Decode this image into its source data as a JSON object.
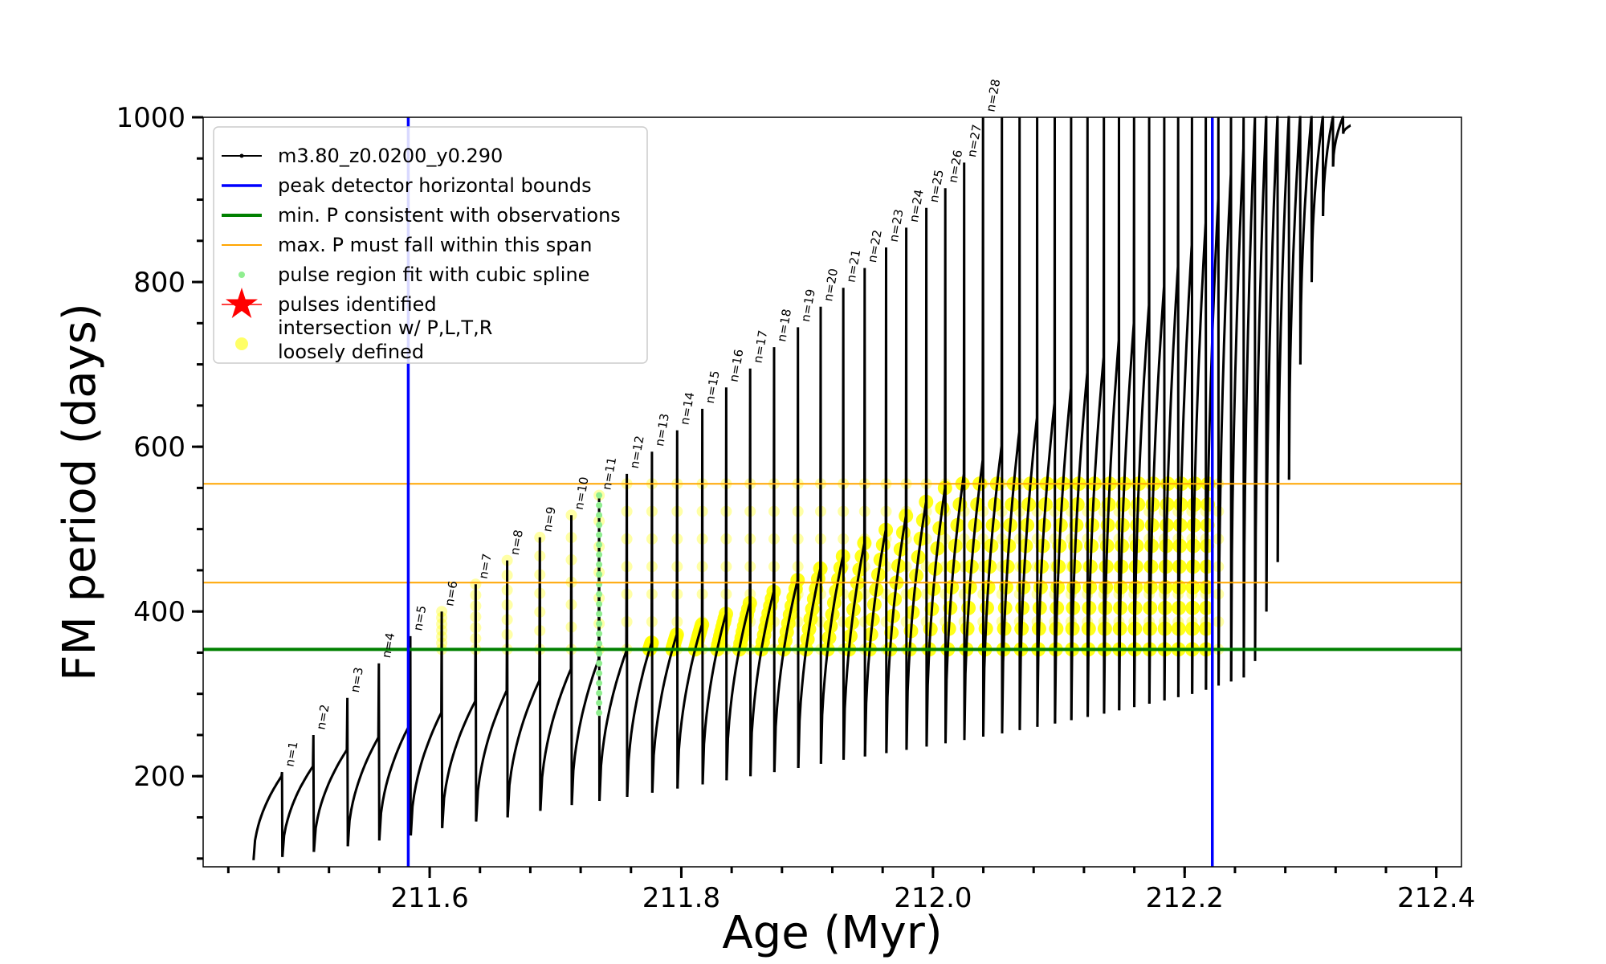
{
  "chart_data": {
    "type": "line",
    "xlabel": "Age (Myr)",
    "ylabel": "FM period (days)",
    "xlim": [
      211.42,
      212.42
    ],
    "ylim": [
      90,
      1000
    ],
    "x_ticks": [
      "211.6",
      "211.8",
      "212.0",
      "212.2",
      "212.4"
    ],
    "y_ticks": [
      "200",
      "400",
      "600",
      "800",
      "1000"
    ],
    "grid": false,
    "legend_position": "top-left",
    "colors": {
      "track": "#000000",
      "bounds": "#0000ff",
      "min_p": "#008000",
      "max_p": "#ffa500",
      "spline": "#90ee90",
      "identified": "#ff0000",
      "intersection": "#ffff00"
    },
    "peak_detector_bounds": [
      211.583,
      212.222
    ],
    "min_period_observed": 354,
    "max_period_span": [
      435,
      555
    ],
    "series": [
      {
        "name": "m3.80_z0.0200_y0.290",
        "pulses": [
          {
            "label": "n=1",
            "start": 211.46,
            "min": 98,
            "settle": 200,
            "peak": 205
          },
          {
            "label": "n=2",
            "start": 211.483,
            "min": 102,
            "settle": 212,
            "peak": 250
          },
          {
            "label": "n=3",
            "start": 211.508,
            "min": 108,
            "settle": 232,
            "peak": 295
          },
          {
            "label": "n=4",
            "start": 211.535,
            "min": 115,
            "settle": 247,
            "peak": 337
          },
          {
            "label": "n=5",
            "start": 211.56,
            "min": 122,
            "settle": 263,
            "peak": 370
          },
          {
            "label": "n=6",
            "start": 211.585,
            "min": 128,
            "settle": 277,
            "peak": 400
          },
          {
            "label": "n=7",
            "start": 211.61,
            "min": 137,
            "settle": 291,
            "peak": 433
          },
          {
            "label": "n=8",
            "start": 211.637,
            "min": 145,
            "settle": 304,
            "peak": 462
          },
          {
            "label": "n=9",
            "start": 211.662,
            "min": 150,
            "settle": 316,
            "peak": 490
          },
          {
            "label": "n=10",
            "start": 211.688,
            "min": 158,
            "settle": 330,
            "peak": 517
          },
          {
            "label": "n=11",
            "start": 211.713,
            "min": 165,
            "settle": 342,
            "peak": 541
          },
          {
            "label": "n=12",
            "start": 211.735,
            "min": 170,
            "settle": 352,
            "peak": 567
          },
          {
            "label": "n=13",
            "start": 211.757,
            "min": 175,
            "settle": 362,
            "peak": 594
          },
          {
            "label": "n=14",
            "start": 211.777,
            "min": 180,
            "settle": 372,
            "peak": 620
          },
          {
            "label": "n=15",
            "start": 211.797,
            "min": 185,
            "settle": 384,
            "peak": 646
          },
          {
            "label": "n=16",
            "start": 211.817,
            "min": 190,
            "settle": 397,
            "peak": 672
          },
          {
            "label": "n=17",
            "start": 211.836,
            "min": 195,
            "settle": 410,
            "peak": 695
          },
          {
            "label": "n=18",
            "start": 211.855,
            "min": 200,
            "settle": 424,
            "peak": 721
          },
          {
            "label": "n=19",
            "start": 211.874,
            "min": 205,
            "settle": 438,
            "peak": 745
          },
          {
            "label": "n=20",
            "start": 211.893,
            "min": 210,
            "settle": 452,
            "peak": 770
          },
          {
            "label": "n=21",
            "start": 211.911,
            "min": 215,
            "settle": 467,
            "peak": 793
          },
          {
            "label": "n=22",
            "start": 211.929,
            "min": 220,
            "settle": 483,
            "peak": 817
          },
          {
            "label": "n=23",
            "start": 211.946,
            "min": 224,
            "settle": 499,
            "peak": 842
          },
          {
            "label": "n=24",
            "start": 211.963,
            "min": 228,
            "settle": 516,
            "peak": 866
          },
          {
            "label": "n=25",
            "start": 211.979,
            "min": 232,
            "settle": 533,
            "peak": 890
          },
          {
            "label": "n=26",
            "start": 211.995,
            "min": 236,
            "settle": 550,
            "peak": 914
          },
          {
            "label": "n=27",
            "start": 212.01,
            "min": 240,
            "settle": 567,
            "peak": 945
          },
          {
            "label": "n=28",
            "start": 212.025,
            "min": 244,
            "settle": 584,
            "peak": 1000
          },
          {
            "label": "",
            "start": 212.04,
            "min": 248,
            "settle": 601,
            "peak": 1000
          },
          {
            "label": "",
            "start": 212.055,
            "min": 252,
            "settle": 618,
            "peak": 1000
          },
          {
            "label": "",
            "start": 212.069,
            "min": 256,
            "settle": 635,
            "peak": 1000
          },
          {
            "label": "",
            "start": 212.083,
            "min": 260,
            "settle": 653,
            "peak": 1000
          },
          {
            "label": "",
            "start": 212.097,
            "min": 264,
            "settle": 671,
            "peak": 1000
          },
          {
            "label": "",
            "start": 212.11,
            "min": 268,
            "settle": 690,
            "peak": 1000
          },
          {
            "label": "",
            "start": 212.123,
            "min": 272,
            "settle": 709,
            "peak": 1000
          },
          {
            "label": "",
            "start": 212.136,
            "min": 276,
            "settle": 729,
            "peak": 1000
          },
          {
            "label": "",
            "start": 212.148,
            "min": 280,
            "settle": 750,
            "peak": 1000
          },
          {
            "label": "",
            "start": 212.16,
            "min": 284,
            "settle": 772,
            "peak": 1000
          },
          {
            "label": "",
            "start": 212.172,
            "min": 288,
            "settle": 795,
            "peak": 1000
          },
          {
            "label": "",
            "start": 212.184,
            "min": 292,
            "settle": 819,
            "peak": 1000
          },
          {
            "label": "",
            "start": 212.195,
            "min": 296,
            "settle": 845,
            "peak": 1000
          },
          {
            "label": "",
            "start": 212.206,
            "min": 300,
            "settle": 872,
            "peak": 1000
          },
          {
            "label": "",
            "start": 212.217,
            "min": 305,
            "settle": 901,
            "peak": 1000
          },
          {
            "label": "",
            "start": 212.227,
            "min": 310,
            "settle": 931,
            "peak": 1000
          },
          {
            "label": "",
            "start": 212.237,
            "min": 315,
            "settle": 962,
            "peak": 1000
          },
          {
            "label": "",
            "start": 212.247,
            "min": 320,
            "settle": 995,
            "peak": 1000
          },
          {
            "label": "",
            "start": 212.256,
            "min": 340,
            "settle": 1000,
            "peak": 1000
          },
          {
            "label": "",
            "start": 212.265,
            "min": 400,
            "settle": 1000,
            "peak": 1000
          },
          {
            "label": "",
            "start": 212.274,
            "min": 460,
            "settle": 1000,
            "peak": 1000
          },
          {
            "label": "",
            "start": 212.283,
            "min": 560,
            "settle": 1000,
            "peak": 1000
          },
          {
            "label": "",
            "start": 212.292,
            "min": 700,
            "settle": 1000,
            "peak": 1000
          },
          {
            "label": "",
            "start": 212.301,
            "min": 800,
            "settle": 1000,
            "peak": 1000
          },
          {
            "label": "",
            "start": 212.31,
            "min": 880,
            "settle": 1000,
            "peak": 1000
          },
          {
            "label": "",
            "start": 212.318,
            "min": 940,
            "settle": 1000,
            "peak": 1000
          },
          {
            "label": "",
            "start": 212.326,
            "min": 980,
            "settle": 990,
            "peak": 990
          }
        ]
      },
      {
        "name": "peak detector horizontal bounds"
      },
      {
        "name": "min. P consistent with observations"
      },
      {
        "name": "max. P must fall within this span"
      },
      {
        "name": "pulse region fit with cubic spline"
      },
      {
        "name": "pulses identified"
      },
      {
        "name": "intersection w/ P,L,T,R\nloosely defined"
      }
    ]
  }
}
